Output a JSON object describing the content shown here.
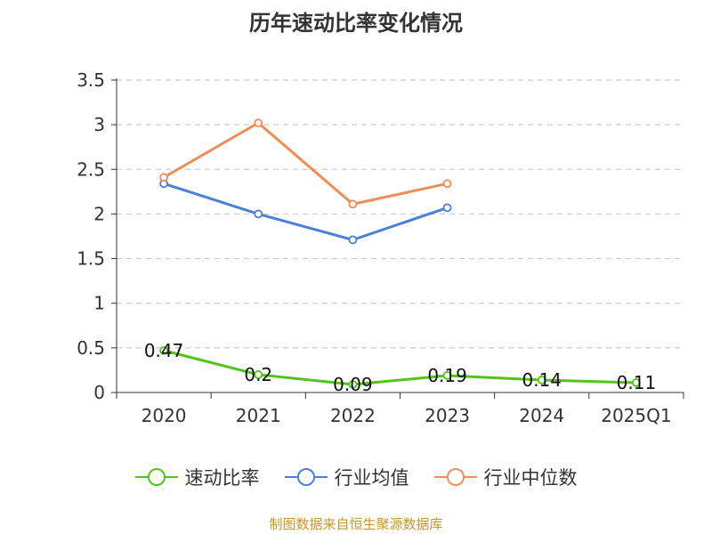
{
  "chart_data": {
    "type": "line",
    "title": "历年速动比率变化情况",
    "categories": [
      "2020",
      "2021",
      "2022",
      "2023",
      "2024",
      "2025Q1"
    ],
    "ylim": [
      0,
      3.5
    ],
    "yticks": [
      "0",
      "0.5",
      "1",
      "1.5",
      "2",
      "2.5",
      "3",
      "3.5"
    ],
    "grid": true,
    "legend_position": "bottom",
    "series": [
      {
        "name": "速动比率",
        "color": "#52c41a",
        "values": [
          0.47,
          0.2,
          0.09,
          0.19,
          0.14,
          0.11
        ],
        "labels": [
          "0.47",
          "0.2",
          "0.09",
          "0.19",
          "0.14",
          "0.11"
        ]
      },
      {
        "name": "行业均值",
        "color": "#4a7fdc",
        "values": [
          2.34,
          2.0,
          1.71,
          2.07,
          null,
          null
        ]
      },
      {
        "name": "行业中位数",
        "color": "#f28c55",
        "values": [
          2.41,
          3.02,
          2.11,
          2.34,
          null,
          null
        ]
      }
    ]
  },
  "source": "制图数据来自恒生聚源数据库"
}
